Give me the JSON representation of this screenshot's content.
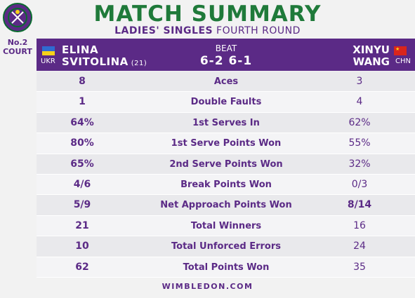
{
  "header": {
    "title": "MATCH SUMMARY",
    "subtitle_bold": "LADIES' SINGLES",
    "subtitle_rest": "FOURTH ROUND",
    "court_line1": "No.2",
    "court_line2": "COURT"
  },
  "players": {
    "p1": {
      "first": "ELINA",
      "last": "SVITOLINA",
      "seed": "(21)",
      "country": "UKR"
    },
    "p2": {
      "first": "XINYU",
      "last": "WANG",
      "country": "CHN"
    }
  },
  "result": {
    "label": "BEAT",
    "score": "6-2 6-1"
  },
  "stats": [
    {
      "label": "Aces",
      "p1": "8",
      "p2": "3"
    },
    {
      "label": "Double Faults",
      "p1": "1",
      "p2": "4"
    },
    {
      "label": "1st Serves In",
      "p1": "64%",
      "p2": "62%"
    },
    {
      "label": "1st Serve Points Won",
      "p1": "80%",
      "p2": "55%"
    },
    {
      "label": "2nd Serve Points Won",
      "p1": "65%",
      "p2": "32%"
    },
    {
      "label": "Break Points Won",
      "p1": "4/6",
      "p2": "0/3"
    },
    {
      "label": "Net Approach Points Won",
      "p1": "5/9",
      "p2": "8/14"
    },
    {
      "label": "Total Winners",
      "p1": "21",
      "p2": "16"
    },
    {
      "label": "Total Unforced Errors",
      "p1": "10",
      "p2": "24"
    },
    {
      "label": "Total Points Won",
      "p1": "62",
      "p2": "35"
    }
  ],
  "footer": "WIMBLEDON.COM",
  "colors": {
    "purple": "#5b2a86",
    "green": "#1f7a3a"
  },
  "icons": {
    "logo": "wimbledon-logo-icon",
    "flag1": "ukraine-flag-icon",
    "flag2": "china-flag-icon"
  }
}
